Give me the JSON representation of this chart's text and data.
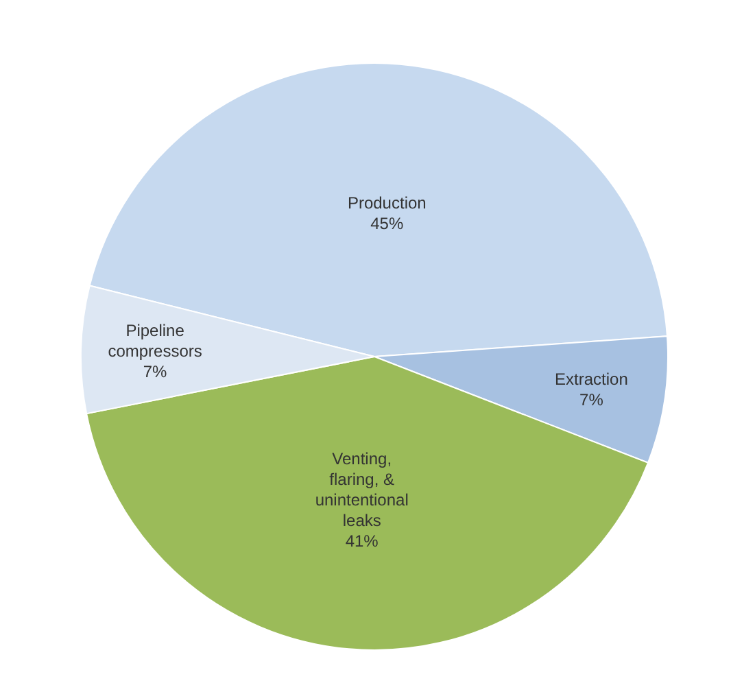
{
  "chart_data": {
    "type": "pie",
    "categories": [
      "Production",
      "Extraction",
      "Venting, flaring, & unintentional leaks",
      "Pipeline compressors"
    ],
    "values": [
      45,
      7,
      41,
      7
    ],
    "colors": [
      "#c6d9ef",
      "#a7c1e1",
      "#9bbb59",
      "#dde7f3"
    ],
    "value_labels": [
      "45%",
      "7%",
      "41%",
      "7%"
    ]
  }
}
